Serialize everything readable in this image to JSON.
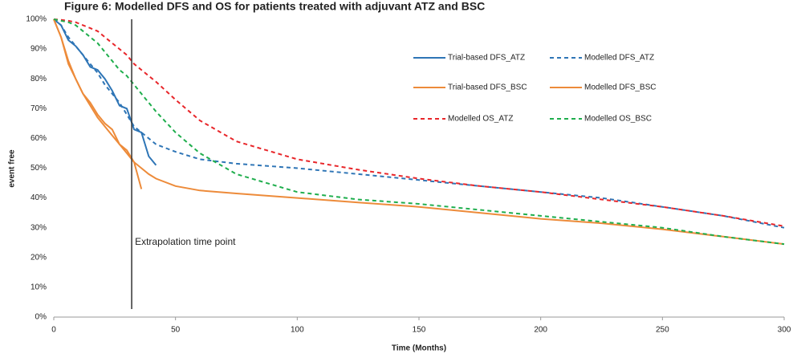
{
  "chart_data": {
    "type": "line",
    "title": "Figure 6: Modelled DFS and OS for patients treated with adjuvant ATZ and BSC",
    "xlabel": "Time (Months)",
    "ylabel": "event free",
    "x": [
      0,
      3,
      6,
      9,
      12,
      15,
      18,
      21,
      24,
      27,
      30,
      33,
      36,
      39,
      42,
      50,
      60,
      75,
      100,
      125,
      150,
      175,
      200,
      225,
      250,
      275,
      300
    ],
    "series": [
      {
        "name": "Trial-based DFS_ATZ",
        "color": "#2e75b6",
        "style": "solid",
        "values": [
          100,
          98,
          93,
          91,
          88,
          84,
          83,
          80,
          76,
          71,
          70,
          63,
          62,
          54,
          51,
          null,
          null,
          null,
          null,
          null,
          null,
          null,
          null,
          null,
          null,
          null,
          null
        ]
      },
      {
        "name": "Modelled DFS_ATZ",
        "color": "#2e75b6",
        "style": "dashed",
        "values": [
          100,
          98,
          94,
          91,
          88,
          85,
          82,
          78,
          75,
          72,
          68,
          64,
          62,
          60,
          58,
          55.5,
          53,
          51.5,
          50,
          48,
          46,
          44,
          42,
          40,
          37,
          34,
          30
        ]
      },
      {
        "name": "Trial-based DFS_BSC",
        "color": "#ed8b3a",
        "style": "solid",
        "values": [
          100,
          94,
          85,
          80,
          75,
          72,
          68,
          65,
          63,
          58,
          56,
          52,
          43,
          null,
          null,
          null,
          null,
          null,
          null,
          null,
          null,
          null,
          null,
          null,
          null,
          null,
          null
        ]
      },
      {
        "name": "Modelled DFS_BSC",
        "color": "#ed8b3a",
        "style": "solid",
        "values": [
          100,
          94,
          86,
          80,
          75,
          71,
          67,
          64,
          61,
          58,
          55,
          52,
          50,
          48,
          46.5,
          44,
          42.5,
          41.5,
          40,
          38.5,
          37,
          35,
          33,
          31.5,
          29.5,
          27,
          24.5
        ]
      },
      {
        "name": "Modelled OS_ATZ",
        "color": "#e8262a",
        "style": "dashed",
        "values": [
          100,
          99.8,
          99.5,
          99,
          98,
          97,
          96,
          94,
          92,
          90,
          88,
          85,
          83,
          81,
          79,
          73,
          66,
          59,
          53,
          49.5,
          46.5,
          44,
          42,
          39.5,
          37,
          34,
          30.5
        ]
      },
      {
        "name": "Modelled OS_BSC",
        "color": "#1fae4d",
        "style": "dashed",
        "values": [
          100,
          99.5,
          99,
          98,
          96,
          94,
          92,
          89,
          86,
          83,
          81,
          78,
          75,
          72,
          69,
          62,
          55,
          48,
          42,
          39.5,
          38,
          36,
          34,
          32,
          30,
          27,
          24.5
        ]
      }
    ],
    "annotations": [
      {
        "text": "Extrapolation time point",
        "x": 32
      }
    ],
    "xlim": [
      0,
      300
    ],
    "xticks": [
      0,
      50,
      100,
      150,
      200,
      250,
      300
    ],
    "ylim": [
      0,
      100
    ],
    "yticks": [
      {
        "value": 0,
        "label": "0%"
      },
      {
        "value": 10,
        "label": "10%"
      },
      {
        "value": 20,
        "label": "20%"
      },
      {
        "value": 30,
        "label": "30%"
      },
      {
        "value": 40,
        "label": "40%"
      },
      {
        "value": 50,
        "label": "50%"
      },
      {
        "value": 60,
        "label": "60%"
      },
      {
        "value": 70,
        "label": "70%"
      },
      {
        "value": 80,
        "label": "80%"
      },
      {
        "value": 90,
        "label": "90%"
      },
      {
        "value": 100,
        "label": "100%"
      }
    ],
    "grid": false,
    "legend": "upper right"
  }
}
